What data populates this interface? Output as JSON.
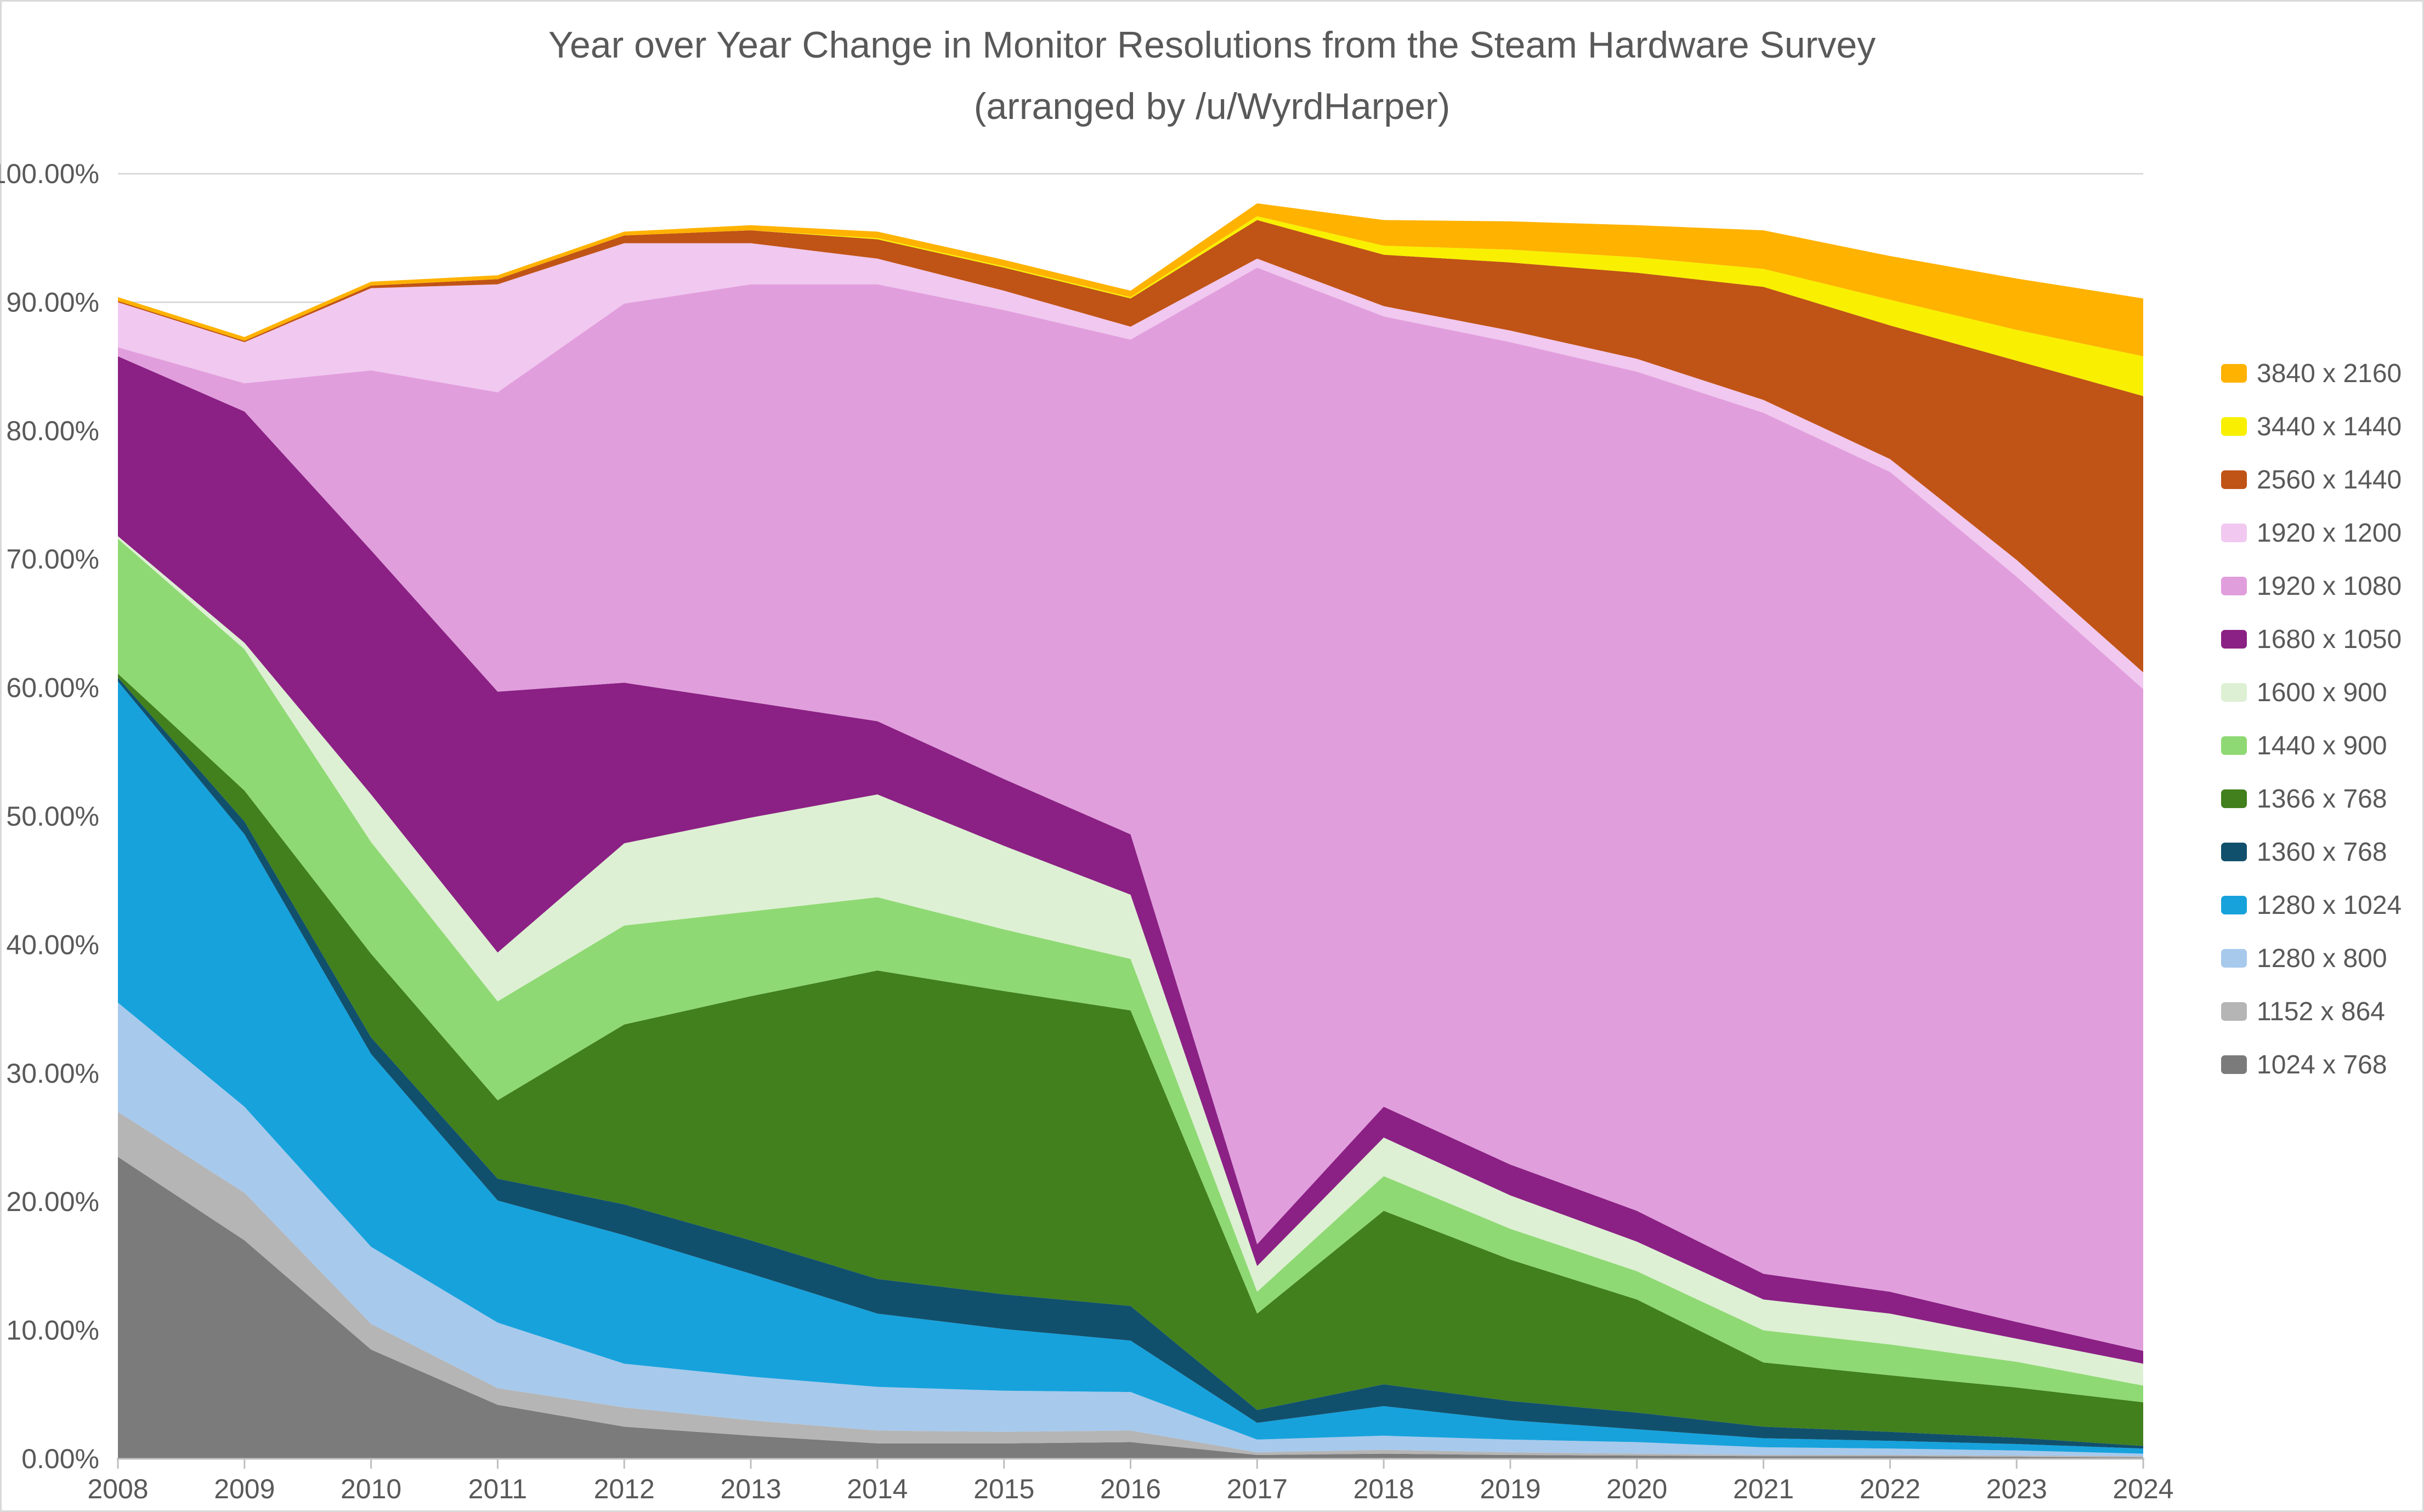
{
  "title": {
    "line1": "Year over Year Change in Monitor Resolutions from the Steam Hardware Survey",
    "line2": "(arranged by /u/WyrdHarper)",
    "color": "#595959"
  },
  "colors": {
    "gridline": "#d9d9d9",
    "axis_line": "#bfbfbf",
    "axis_text": "#595959",
    "background": "#ffffff"
  },
  "chart_data": {
    "type": "area",
    "stacked": true,
    "grid": true,
    "legend_position": "right",
    "x": [
      "2008",
      "2009",
      "2010",
      "2011",
      "2012",
      "2013",
      "2014",
      "2015",
      "2016",
      "2017",
      "2018",
      "2019",
      "2020",
      "2021",
      "2022",
      "2023",
      "2024"
    ],
    "xlabel": "",
    "ylabel": "",
    "ylim": [
      0,
      100
    ],
    "y_tick_labels": [
      "0.00%",
      "10.00%",
      "20.00%",
      "30.00%",
      "40.00%",
      "50.00%",
      "60.00%",
      "70.00%",
      "80.00%",
      "90.00%",
      "100.00%"
    ],
    "series_note": "series listed bottom-to-top of the stack; values are percent share per year",
    "series": [
      {
        "name": "1024 x 768",
        "color": "#7b7b7b",
        "values": [
          23.5,
          17.0,
          8.5,
          4.2,
          2.5,
          1.8,
          1.2,
          1.2,
          1.3,
          0.3,
          0.4,
          0.3,
          0.25,
          0.2,
          0.2,
          0.15,
          0.1
        ]
      },
      {
        "name": "1152 x 864",
        "color": "#b5b5b5",
        "values": [
          3.5,
          3.7,
          2.0,
          1.3,
          1.5,
          1.2,
          1.0,
          0.9,
          0.9,
          0.2,
          0.3,
          0.2,
          0.15,
          0.1,
          0.1,
          0.1,
          0.1
        ]
      },
      {
        "name": "1280 x 800",
        "color": "#a7c9ec",
        "values": [
          8.5,
          6.7,
          6.0,
          5.1,
          3.4,
          3.4,
          3.4,
          3.2,
          3.0,
          1.0,
          1.1,
          1.0,
          0.9,
          0.6,
          0.5,
          0.4,
          0.2
        ]
      },
      {
        "name": "1280 x 1024",
        "color": "#17a2dc",
        "values": [
          25.0,
          21.2,
          15.0,
          9.5,
          10.0,
          8.0,
          5.7,
          4.8,
          4.0,
          1.3,
          2.3,
          1.5,
          1.0,
          0.7,
          0.6,
          0.5,
          0.4
        ]
      },
      {
        "name": "1360 x 768",
        "color": "#11506c",
        "values": [
          0.3,
          1.0,
          1.3,
          1.7,
          2.4,
          2.6,
          2.7,
          2.7,
          2.7,
          1.0,
          1.7,
          1.5,
          1.3,
          0.9,
          0.7,
          0.5,
          0.2
        ]
      },
      {
        "name": "1366 x 768",
        "color": "#41801d",
        "values": [
          0.3,
          2.4,
          6.5,
          6.1,
          14.0,
          19.0,
          24.0,
          23.6,
          23.0,
          7.5,
          13.5,
          11.0,
          8.8,
          5.0,
          4.4,
          3.9,
          3.4
        ]
      },
      {
        "name": "1440 x 900",
        "color": "#8fd974",
        "values": [
          10.5,
          11.0,
          8.7,
          7.7,
          7.7,
          6.6,
          5.7,
          4.8,
          4.0,
          1.7,
          2.7,
          2.4,
          2.2,
          2.5,
          2.4,
          2.0,
          1.3
        ]
      },
      {
        "name": "1600 x 900",
        "color": "#ddf0d3",
        "values": [
          0.2,
          0.5,
          3.7,
          3.8,
          6.4,
          7.3,
          8.0,
          6.5,
          5.0,
          2.0,
          3.0,
          2.6,
          2.3,
          2.4,
          2.4,
          1.8,
          1.7
        ]
      },
      {
        "name": "1680 x 1050",
        "color": "#8b2184",
        "values": [
          14.0,
          18.0,
          19.0,
          20.3,
          12.5,
          9.0,
          5.7,
          5.2,
          4.7,
          1.7,
          2.4,
          2.4,
          2.4,
          2.0,
          1.7,
          1.3,
          1.0
        ]
      },
      {
        "name": "1920 x 1080",
        "color": "#e19edd",
        "values": [
          0.7,
          2.2,
          14.0,
          23.3,
          29.5,
          32.5,
          34.0,
          36.5,
          38.5,
          76.0,
          61.5,
          64.0,
          65.3,
          67.0,
          63.8,
          58.0,
          51.5
        ]
      },
      {
        "name": "1920 x 1200",
        "color": "#f1c8ef",
        "values": [
          3.5,
          3.2,
          6.4,
          8.4,
          4.7,
          3.2,
          2.0,
          1.5,
          1.0,
          0.7,
          0.8,
          0.9,
          1.0,
          1.0,
          1.0,
          1.3,
          1.3
        ]
      },
      {
        "name": "2560 x 1440",
        "color": "#c05316",
        "values": [
          0.1,
          0.1,
          0.2,
          0.4,
          0.6,
          1.0,
          1.5,
          1.8,
          2.2,
          3.0,
          4.0,
          5.3,
          6.7,
          8.8,
          10.4,
          15.5,
          21.5
        ]
      },
      {
        "name": "3440 x 1440",
        "color": "#f8f000",
        "values": [
          0.0,
          0.0,
          0.0,
          0.0,
          0.0,
          0.0,
          0.1,
          0.1,
          0.1,
          0.3,
          0.7,
          1.0,
          1.2,
          1.4,
          2.0,
          2.4,
          3.1
        ]
      },
      {
        "name": "3840 x 2160",
        "color": "#ffb200",
        "values": [
          0.3,
          0.3,
          0.3,
          0.3,
          0.3,
          0.4,
          0.5,
          0.5,
          0.5,
          1.0,
          2.0,
          2.2,
          2.5,
          3.0,
          3.4,
          4.0,
          4.5
        ]
      }
    ]
  }
}
